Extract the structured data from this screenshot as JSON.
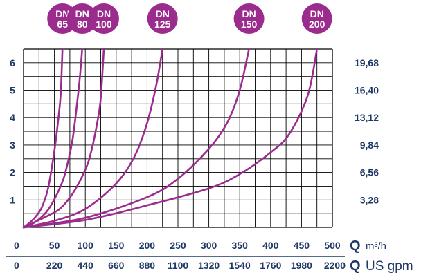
{
  "chart_data": {
    "type": "line",
    "x_primary": {
      "ticks": [
        "0",
        "50",
        "100",
        "150",
        "200",
        "250",
        "300",
        "350",
        "400",
        "450",
        "500"
      ],
      "symbol": "Q",
      "unit": "m³/h",
      "range": [
        0,
        500
      ]
    },
    "x_secondary": {
      "ticks": [
        "0",
        "220",
        "440",
        "660",
        "880",
        "1100",
        "1320",
        "1540",
        "1760",
        "1980",
        "2200"
      ],
      "symbol": "Q",
      "unit": "US gpm"
    },
    "y_left": {
      "ticks": [
        "1",
        "2",
        "3",
        "4",
        "5",
        "6"
      ],
      "range": [
        0,
        6.5
      ]
    },
    "y_right": {
      "ticks": [
        "3,28",
        "6,56",
        "9,84",
        "13,12",
        "16,40",
        "19,68"
      ]
    },
    "grid": true,
    "color": "#9b2c8e",
    "axis_text_color": "#1f3864",
    "series": [
      {
        "name": "DN 65",
        "label_lines": [
          "DN",
          "65"
        ],
        "x": [
          0,
          10,
          20,
          30,
          40,
          50,
          55,
          60,
          63
        ],
        "y": [
          0,
          0.17,
          0.4,
          0.75,
          1.45,
          2.8,
          3.7,
          4.8,
          6.5
        ]
      },
      {
        "name": "DN 80",
        "label_lines": [
          "DN",
          "80"
        ],
        "x": [
          0,
          20,
          40,
          60,
          70,
          80,
          90,
          95
        ],
        "y": [
          0,
          0.21,
          0.65,
          1.5,
          2.2,
          3.3,
          5.2,
          6.5
        ]
      },
      {
        "name": "DN 100",
        "label_lines": [
          "DN",
          "100"
        ],
        "x": [
          0,
          40,
          60,
          80,
          100,
          110,
          120,
          125,
          130
        ],
        "y": [
          0,
          0.43,
          0.7,
          1.25,
          2.1,
          2.8,
          3.9,
          4.7,
          6.5
        ]
      },
      {
        "name": "DN 125",
        "label_lines": [
          "DN",
          "125"
        ],
        "x": [
          0,
          50,
          100,
          150,
          180,
          200,
          215,
          225
        ],
        "y": [
          0,
          0.24,
          0.67,
          1.6,
          2.6,
          3.8,
          5.2,
          6.5
        ]
      },
      {
        "name": "DN 150",
        "label_lines": [
          "DN",
          "150"
        ],
        "x": [
          0,
          100,
          200,
          250,
          300,
          330,
          350,
          365
        ],
        "y": [
          0,
          0.35,
          1.1,
          1.77,
          2.86,
          3.83,
          5,
          6.5
        ]
      },
      {
        "name": "DN 200",
        "label_lines": [
          "DN",
          "200"
        ],
        "x": [
          0,
          100,
          200,
          300,
          350,
          400,
          430,
          460,
          475
        ],
        "y": [
          0,
          0.27,
          0.8,
          1.42,
          1.94,
          2.73,
          3.4,
          4.8,
          6.5
        ]
      }
    ]
  }
}
